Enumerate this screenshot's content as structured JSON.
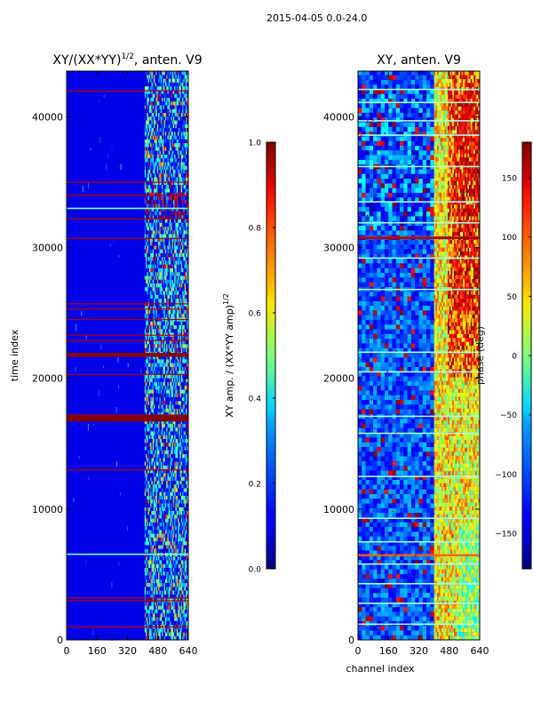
{
  "suptitle": "2015-04-05 0.0-24.0",
  "chart_data": [
    {
      "type": "heatmap",
      "title": "XY/(XX*YY)^{1/2}, anten. V9",
      "title_main": "XY/(XX*YY)",
      "title_sup": "1/2",
      "title_tail": ", anten. V9",
      "xlabel": "",
      "ylabel": "time index",
      "xlim": [
        0,
        640
      ],
      "ylim": [
        0,
        43500
      ],
      "xticks": [
        0,
        160,
        320,
        480,
        640
      ],
      "xtick_labels": [
        "0",
        "160",
        "320",
        "480",
        "640"
      ],
      "yticks": [
        0,
        10000,
        20000,
        30000,
        40000
      ],
      "ytick_labels": [
        "0",
        "10000",
        "20000",
        "30000",
        "40000"
      ],
      "colorbar": {
        "label": "XY amp. / (XX*YY amp)^{1/2}",
        "label_main": "XY amp. / (XX*YY amp)",
        "label_sup": "1/2",
        "range": [
          0.0,
          1.0
        ],
        "ticks": [
          0.0,
          0.2,
          0.4,
          0.6,
          0.8,
          1.0
        ],
        "tick_labels": [
          "0.0",
          "0.2",
          "0.4",
          "0.6",
          "0.8",
          "1.0"
        ]
      },
      "signal_channel_range": [
        410,
        640
      ],
      "rfi_rows": [
        1000,
        3000,
        3200,
        13000,
        16800,
        16950,
        17100,
        17200,
        20300,
        21700,
        21800,
        21900,
        22900,
        23300,
        24500,
        25300,
        25700,
        30700,
        32200,
        34000,
        35000,
        42000
      ]
    },
    {
      "type": "heatmap",
      "title": "XY, anten. V9",
      "xlabel": "channel index",
      "ylabel": "",
      "xlim": [
        0,
        640
      ],
      "ylim": [
        0,
        43500
      ],
      "xticks": [
        0,
        160,
        320,
        480,
        640
      ],
      "xtick_labels": [
        "0",
        "160",
        "320",
        "480",
        "640"
      ],
      "yticks": [
        0,
        10000,
        20000,
        30000,
        40000
      ],
      "ytick_labels": [
        "0",
        "10000",
        "20000",
        "30000",
        "40000"
      ],
      "colorbar": {
        "label": "phase (deg)",
        "range": [
          -180,
          180
        ],
        "ticks": [
          -150,
          -100,
          -50,
          0,
          50,
          100,
          150
        ],
        "tick_labels": [
          "−150",
          "−100",
          "−50",
          "0",
          "50",
          "100",
          "150"
        ]
      },
      "signal_channel_range": [
        400,
        640
      ],
      "flag_rows": [
        1200,
        2800,
        4300,
        5800,
        6500,
        7500,
        9300,
        12500,
        15800,
        17100,
        20500,
        22000,
        26800,
        29200,
        30800,
        31900,
        33500,
        36200,
        38600,
        39700,
        41100,
        42100
      ]
    }
  ]
}
